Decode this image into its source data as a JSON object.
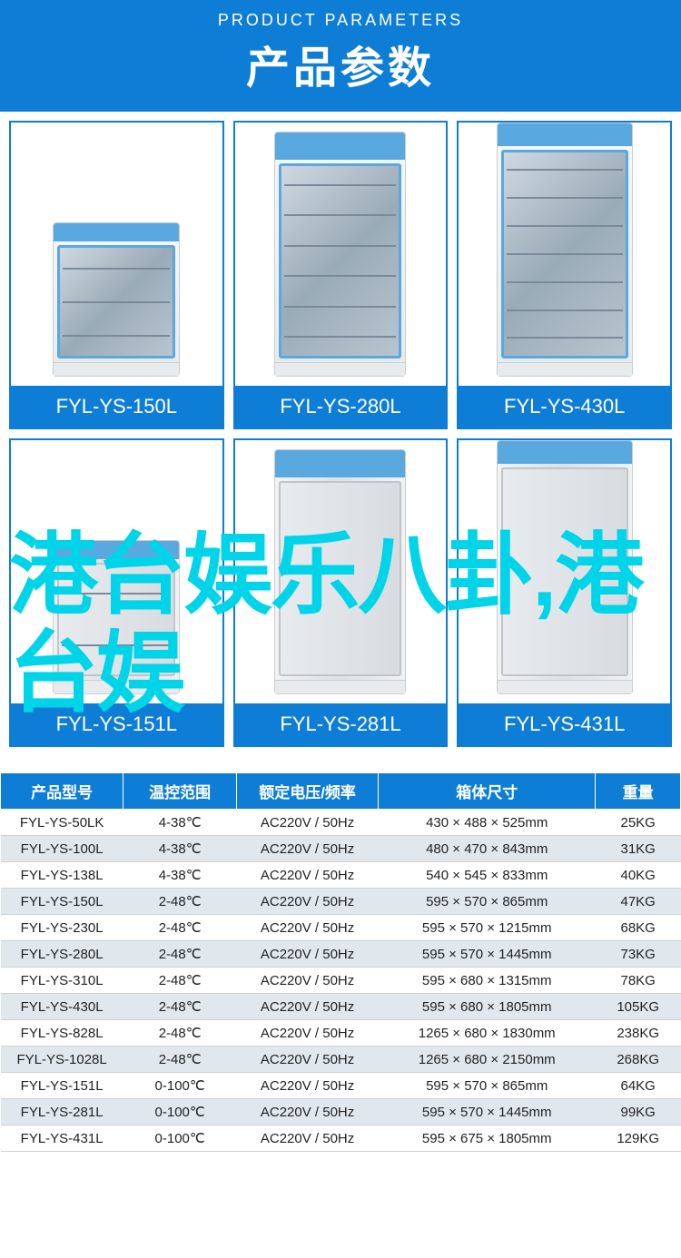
{
  "header": {
    "subtitle": "PRODUCT PARAMETERS",
    "title": "产品参数"
  },
  "watermark": "港台娱乐八卦,港台娱",
  "products": [
    {
      "label": "FYL-YS-150L",
      "size": "small",
      "type": "glass",
      "shelves": 3
    },
    {
      "label": "FYL-YS-280L",
      "size": "med",
      "type": "glass",
      "shelves": 6
    },
    {
      "label": "FYL-YS-430L",
      "size": "large",
      "type": "glass",
      "shelves": 7
    },
    {
      "label": "FYL-YS-151L",
      "size": "small",
      "type": "solid",
      "shelves": 2
    },
    {
      "label": "FYL-YS-281L",
      "size": "med",
      "type": "solid",
      "shelves": 0
    },
    {
      "label": "FYL-YS-431L",
      "size": "large",
      "type": "solid",
      "shelves": 0
    }
  ],
  "spec_table": {
    "headers": [
      "产品型号",
      "温控范围",
      "额定电压/频率",
      "箱体尺寸",
      "重量"
    ],
    "rows": [
      [
        "FYL-YS-50LK",
        "4-38℃",
        "AC220V / 50Hz",
        "430 × 488 × 525mm",
        "25KG"
      ],
      [
        "FYL-YS-100L",
        "4-38℃",
        "AC220V / 50Hz",
        "480 × 470 × 843mm",
        "31KG"
      ],
      [
        "FYL-YS-138L",
        "4-38℃",
        "AC220V / 50Hz",
        "540 × 545 × 833mm",
        "40KG"
      ],
      [
        "FYL-YS-150L",
        "2-48℃",
        "AC220V / 50Hz",
        "595 × 570 × 865mm",
        "47KG"
      ],
      [
        "FYL-YS-230L",
        "2-48℃",
        "AC220V / 50Hz",
        "595 × 570 × 1215mm",
        "68KG"
      ],
      [
        "FYL-YS-280L",
        "2-48℃",
        "AC220V / 50Hz",
        "595 × 570 × 1445mm",
        "73KG"
      ],
      [
        "FYL-YS-310L",
        "2-48℃",
        "AC220V / 50Hz",
        "595 × 680 × 1315mm",
        "78KG"
      ],
      [
        "FYL-YS-430L",
        "2-48℃",
        "AC220V / 50Hz",
        "595 × 680 × 1805mm",
        "105KG"
      ],
      [
        "FYL-YS-828L",
        "2-48℃",
        "AC220V / 50Hz",
        "1265 × 680 × 1830mm",
        "238KG"
      ],
      [
        "FYL-YS-1028L",
        "2-48℃",
        "AC220V / 50Hz",
        "1265 × 680 × 2150mm",
        "268KG"
      ],
      [
        "FYL-YS-151L",
        "0-100℃",
        "AC220V / 50Hz",
        "595 × 570 × 865mm",
        "64KG"
      ],
      [
        "FYL-YS-281L",
        "0-100℃",
        "AC220V / 50Hz",
        "595 × 570 × 1445mm",
        "99KG"
      ],
      [
        "FYL-YS-431L",
        "0-100℃",
        "AC220V / 50Hz",
        "595 × 675 × 1805mm",
        "129KG"
      ]
    ]
  },
  "colors": {
    "primary": "#0e7dd6",
    "header_bg": "#0e7dd6",
    "watermark": "#00d4e8",
    "table_alt": "#e0e8ee",
    "cabinet_frame": "#5aa8e0"
  }
}
